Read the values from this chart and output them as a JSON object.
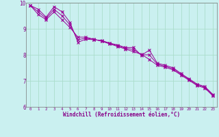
{
  "xlabel": "Windchill (Refroidissement éolien,°C)",
  "bg_color": "#caf0f0",
  "grid_color": "#aaddcc",
  "line_color": "#990099",
  "hours": [
    0,
    1,
    2,
    3,
    4,
    5,
    6,
    7,
    8,
    9,
    10,
    11,
    12,
    13,
    14,
    15,
    16,
    17,
    18,
    19,
    20,
    21,
    22,
    23
  ],
  "line1": [
    9.9,
    9.75,
    9.45,
    9.85,
    9.65,
    9.25,
    8.48,
    8.6,
    8.58,
    8.55,
    8.45,
    8.38,
    8.28,
    8.28,
    7.98,
    8.18,
    7.68,
    7.6,
    7.5,
    7.28,
    7.08,
    6.88,
    6.78,
    6.48
  ],
  "line2": [
    9.9,
    9.55,
    9.35,
    9.65,
    9.35,
    9.05,
    8.68,
    8.68,
    8.6,
    8.52,
    8.42,
    8.32,
    8.22,
    8.12,
    8.02,
    7.82,
    7.6,
    7.52,
    7.42,
    7.22,
    7.02,
    6.82,
    6.72,
    6.42
  ],
  "line3": [
    9.9,
    9.65,
    9.4,
    9.75,
    9.5,
    9.15,
    8.58,
    8.64,
    8.59,
    8.535,
    8.435,
    8.35,
    8.25,
    8.2,
    8.0,
    8.0,
    7.64,
    7.56,
    7.46,
    7.25,
    7.05,
    6.85,
    6.75,
    6.45
  ],
  "xlim_min": -0.5,
  "xlim_max": 23.5,
  "ylim": [
    6,
    10
  ],
  "yticks": [
    6,
    7,
    8,
    9,
    10
  ],
  "xticks": [
    0,
    1,
    2,
    3,
    4,
    5,
    6,
    7,
    8,
    9,
    10,
    11,
    12,
    13,
    14,
    15,
    16,
    17,
    18,
    19,
    20,
    21,
    22,
    23
  ]
}
